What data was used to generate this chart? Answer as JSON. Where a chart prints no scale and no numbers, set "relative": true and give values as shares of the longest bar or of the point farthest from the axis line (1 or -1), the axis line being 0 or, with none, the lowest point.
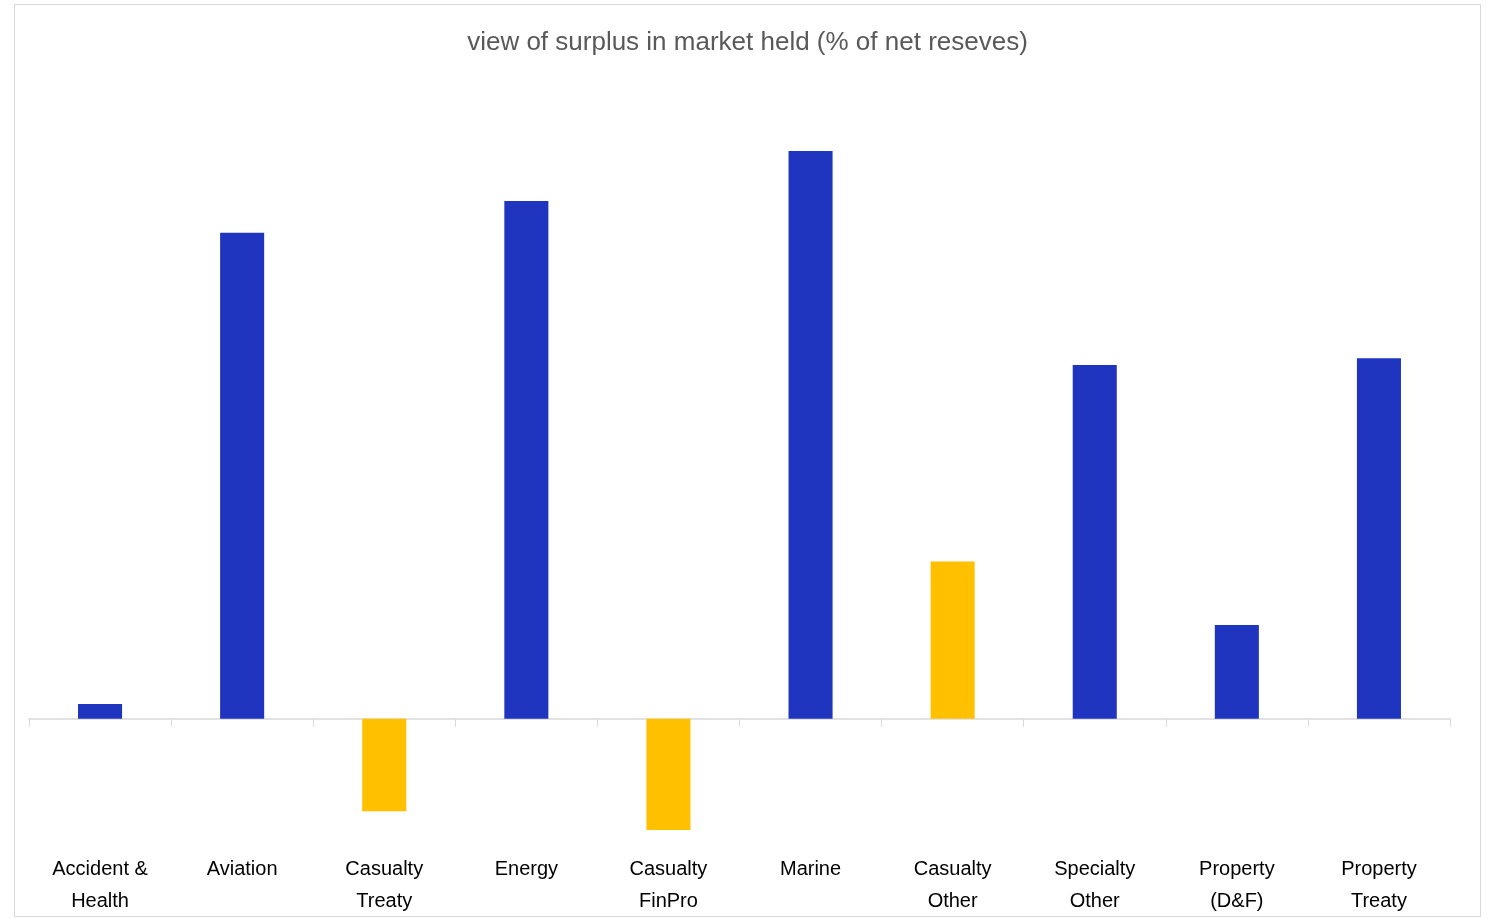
{
  "chart_data": {
    "type": "bar",
    "title": "view of surplus in market held (% of net reseves)",
    "relative": true,
    "categories": [
      "Accident &\nHealth",
      "Aviation",
      "Casualty\nTreaty",
      "Energy",
      "Casualty\nFinPro",
      "Marine",
      "Casualty\nOther",
      "Specialty\nOther",
      "Property\n(D&F)",
      "Property\nTreaty"
    ],
    "values": [
      0.026,
      0.856,
      -0.163,
      0.912,
      -0.196,
      1,
      0.277,
      0.623,
      0.165,
      0.635
    ],
    "colors": [
      "#1f35c0",
      "#1f35c0",
      "#ffc000",
      "#1f35c0",
      "#ffc000",
      "#1f35c0",
      "#ffc000",
      "#1f35c0",
      "#1f35c0",
      "#1f35c0"
    ],
    "grid": false
  }
}
